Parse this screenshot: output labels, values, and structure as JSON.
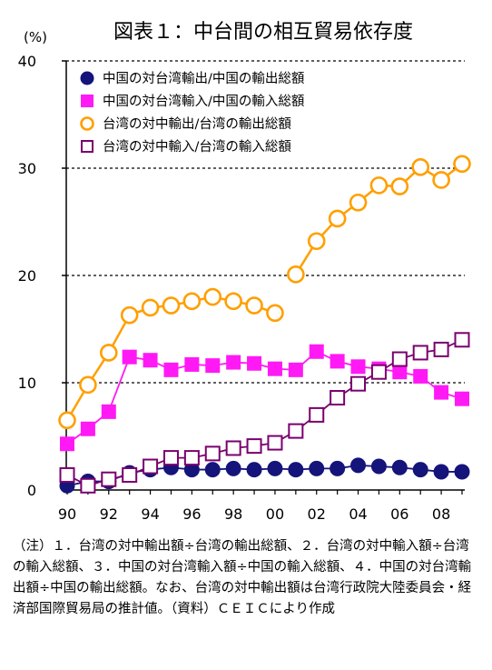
{
  "chart_data": {
    "type": "line",
    "title": "図表１：中台間の相互貿易依存度",
    "ylabel": "(%)",
    "ylim": [
      0,
      40
    ],
    "yticks": [
      0,
      10,
      20,
      30,
      40
    ],
    "xlim": [
      1990,
      2009
    ],
    "xticks": [
      1990,
      1992,
      1994,
      1996,
      1998,
      2000,
      2002,
      2004,
      2006,
      2008
    ],
    "xtick_labels": [
      "90",
      "92",
      "94",
      "96",
      "98",
      "00",
      "02",
      "04",
      "06",
      "08"
    ],
    "grid": "horizontal dotted",
    "legend_position": "top-left",
    "x": [
      1990,
      1991,
      1992,
      1993,
      1994,
      1995,
      1996,
      1997,
      1998,
      1999,
      2000,
      2001,
      2002,
      2003,
      2004,
      2005,
      2006,
      2007,
      2008,
      2009
    ],
    "series": [
      {
        "name": "中国の対台湾輸出/中国の輸出総額",
        "color": "#14147a",
        "marker": "filled-circle",
        "values": [
          0.4,
          0.8,
          0.8,
          1.6,
          1.9,
          2.1,
          1.9,
          1.9,
          2.0,
          1.9,
          2.0,
          1.9,
          2.0,
          2.0,
          2.3,
          2.2,
          2.1,
          1.9,
          1.7,
          1.7
        ]
      },
      {
        "name": "中国の対台湾輸入/中国の輸入総額",
        "color": "#ff19f5",
        "marker": "filled-square",
        "values": [
          4.3,
          5.7,
          7.3,
          12.4,
          12.1,
          11.2,
          11.7,
          11.6,
          11.9,
          11.8,
          11.3,
          11.2,
          12.9,
          12.0,
          11.5,
          11.3,
          11.0,
          10.6,
          9.1,
          8.5
        ]
      },
      {
        "name": "台湾の対中輸出/台湾の輸出総額",
        "color": "#ff9f00",
        "marker": "hollow-circle",
        "values": [
          6.5,
          9.8,
          12.8,
          16.3,
          17.0,
          17.2,
          17.6,
          18.0,
          17.6,
          17.2,
          16.5,
          20.1,
          23.2,
          25.3,
          26.8,
          28.4,
          28.3,
          30.1,
          28.9,
          30.4
        ],
        "break_after": 2000
      },
      {
        "name": "台湾の対中輸入/台湾の輸入総額",
        "color": "#7a006e",
        "marker": "hollow-square",
        "values": [
          1.4,
          0.4,
          1.0,
          1.4,
          2.2,
          3.0,
          3.0,
          3.4,
          3.9,
          4.1,
          4.4,
          5.5,
          7.0,
          8.6,
          9.9,
          11.0,
          12.2,
          12.8,
          13.1,
          14.0
        ]
      }
    ]
  },
  "note": "（注）１．台湾の対中輸出額÷台湾の輸出総額、２．台湾の対中輸入額÷台湾の輸入総額、３．中国の対台湾輸入額÷中国の輸入総額、４．中国の対台湾輸出額÷中国の輸出総額。なお、台湾の対中輸出額は台湾行政院大陸委員会・経済部国際貿易局の推計値。（資料）ＣＥＩＣにより作成"
}
